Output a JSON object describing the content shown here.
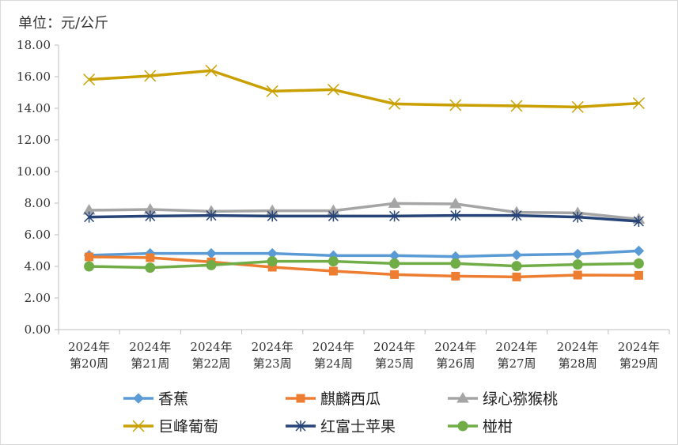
{
  "chart_data": {
    "type": "line",
    "unit_label": "单位：元/公斤",
    "categories": [
      [
        "2024年",
        "第20周"
      ],
      [
        "2024年",
        "第21周"
      ],
      [
        "2024年",
        "第22周"
      ],
      [
        "2024年",
        "第23周"
      ],
      [
        "2024年",
        "第24周"
      ],
      [
        "2024年",
        "第25周"
      ],
      [
        "2024年",
        "第26周"
      ],
      [
        "2024年",
        "第27周"
      ],
      [
        "2024年",
        "第28周"
      ],
      [
        "2024年",
        "第29周"
      ]
    ],
    "ylim": [
      0,
      18
    ],
    "yticks": [
      "0.00",
      "2.00",
      "4.00",
      "6.00",
      "8.00",
      "10.00",
      "12.00",
      "14.00",
      "16.00",
      "18.00"
    ],
    "grid": false,
    "legend_position": "bottom",
    "series": [
      {
        "name": "香蕉",
        "color": "#5B9BD5",
        "marker": "diamond",
        "values": [
          4.7,
          4.82,
          4.82,
          4.82,
          4.68,
          4.68,
          4.62,
          4.72,
          4.78,
          4.98
        ]
      },
      {
        "name": "麒麟西瓜",
        "color": "#ED7D31",
        "marker": "square",
        "values": [
          4.6,
          4.55,
          4.28,
          3.95,
          3.7,
          3.48,
          3.38,
          3.33,
          3.45,
          3.43
        ]
      },
      {
        "name": "绿心猕猴桃",
        "color": "#A5A5A5",
        "marker": "triangle",
        "values": [
          7.55,
          7.6,
          7.48,
          7.52,
          7.52,
          7.98,
          7.95,
          7.42,
          7.38,
          6.98
        ]
      },
      {
        "name": "巨峰葡萄",
        "color": "#C9A000",
        "marker": "x",
        "values": [
          15.82,
          16.05,
          16.38,
          15.08,
          15.18,
          14.28,
          14.2,
          14.15,
          14.08,
          14.32
        ]
      },
      {
        "name": "红富士苹果",
        "color": "#264478",
        "marker": "star",
        "values": [
          7.12,
          7.18,
          7.22,
          7.18,
          7.18,
          7.18,
          7.22,
          7.22,
          7.12,
          6.85
        ]
      },
      {
        "name": "椪柑",
        "color": "#70AD47",
        "marker": "circle",
        "values": [
          4.0,
          3.92,
          4.08,
          4.32,
          4.32,
          4.18,
          4.18,
          4.02,
          4.12,
          4.18
        ]
      }
    ]
  }
}
